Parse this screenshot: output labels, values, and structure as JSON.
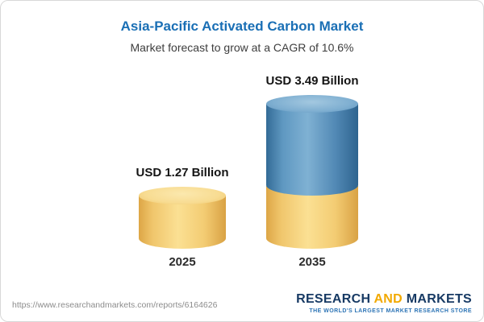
{
  "card": {
    "title": "Asia-Pacific Activated Carbon Market",
    "subtitle": "Market forecast to grow at a CAGR of 10.6%"
  },
  "chart_data": {
    "type": "bar",
    "subtype": "stacked-cylinder",
    "title": "Asia-Pacific Activated Carbon Market",
    "subtitle": "Market forecast to grow at a CAGR of 10.6%",
    "cagr": "10.6%",
    "unit": "USD Billion",
    "categories": [
      "2025",
      "2035"
    ],
    "values": [
      1.27,
      3.49
    ],
    "value_labels": [
      "USD 1.27 Billion",
      "USD 3.49 Billion"
    ],
    "ylim": [
      0,
      3.49
    ],
    "grid": false,
    "legend": false,
    "colors": {
      "base_segment": "#f6cf72",
      "growth_segment": "#4e87b4"
    },
    "notes": "2035 cylinder is stacked: yellow base equals the 2025 value, blue top is the forecast growth"
  },
  "footer": {
    "url": "https://www.researchandmarkets.com/reports/6164626",
    "logo_part1": "RESEARCH ",
    "logo_part2": "AND",
    "logo_part3": " MARKETS",
    "logo_tagline": "THE WORLD'S LARGEST MARKET RESEARCH STORE"
  }
}
